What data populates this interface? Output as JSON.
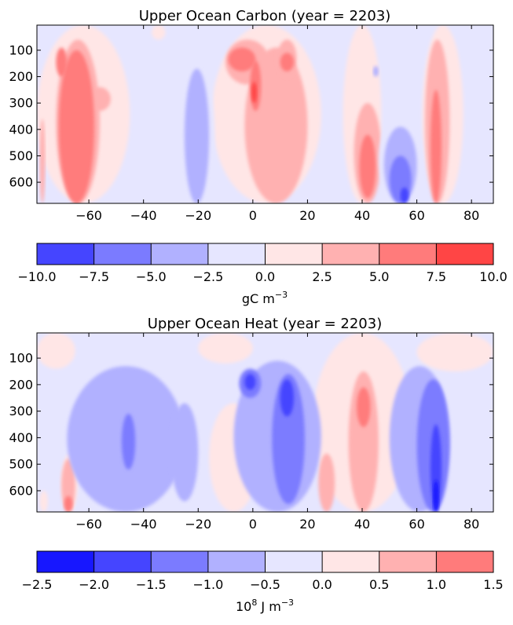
{
  "chart_data": [
    {
      "type": "heatmap",
      "title": "Upper Ocean Carbon  (year = 2203)",
      "xlabel": "",
      "ylabel": "",
      "xlim": [
        -79,
        88
      ],
      "ylim": [
        680,
        5
      ],
      "x_ticks": [
        -60,
        -40,
        -20,
        0,
        20,
        40,
        60,
        80
      ],
      "x_tick_labels": [
        "−60",
        "−40",
        "−20",
        "0",
        "20",
        "40",
        "60",
        "80"
      ],
      "y_ticks": [
        100,
        200,
        300,
        400,
        500,
        600
      ],
      "y_tick_labels": [
        "100",
        "200",
        "300",
        "400",
        "500",
        "600"
      ],
      "colorbar": {
        "levels": [
          -10,
          -7.5,
          -5,
          -2.5,
          0,
          2.5,
          5,
          7.5,
          10
        ],
        "level_labels": [
          "−10.0",
          "−7.5",
          "−5.0",
          "−2.5",
          "0.0",
          "2.5",
          "5.0",
          "7.5",
          "10.0"
        ],
        "colors": [
          "#4545ff",
          "#7b7bff",
          "#b1b1ff",
          "#e6e6ff",
          "#ffe6e6",
          "#ffb1b1",
          "#ff7b7b",
          "#ff4545"
        ],
        "label_text": "gC m",
        "label_exp": "−3"
      },
      "background_band": 3,
      "features": [
        {
          "band": 4,
          "x": [
            -79,
            -45
          ],
          "y": [
            5,
            680
          ]
        },
        {
          "band": 4,
          "x": [
            -15,
            25
          ],
          "y": [
            5,
            680
          ]
        },
        {
          "band": 4,
          "x": [
            33,
            47
          ],
          "y": [
            5,
            680
          ]
        },
        {
          "band": 4,
          "x": [
            62,
            77
          ],
          "y": [
            5,
            680
          ]
        },
        {
          "band": 4,
          "x": [
            -37,
            -32
          ],
          "y": [
            5,
            60
          ]
        },
        {
          "band": 5,
          "x": [
            -72,
            -56
          ],
          "y": [
            60,
            680
          ]
        },
        {
          "band": 5,
          "x": [
            -78,
            -76
          ],
          "y": [
            360,
            680
          ]
        },
        {
          "band": 5,
          "x": [
            -60,
            -52
          ],
          "y": [
            240,
            330
          ]
        },
        {
          "band": 5,
          "x": [
            -10,
            6
          ],
          "y": [
            60,
            230
          ]
        },
        {
          "band": 5,
          "x": [
            -3,
            20
          ],
          "y": [
            90,
            680
          ]
        },
        {
          "band": 5,
          "x": [
            9,
            16
          ],
          "y": [
            60,
            200
          ]
        },
        {
          "band": 5,
          "x": [
            37,
            47
          ],
          "y": [
            300,
            680
          ]
        },
        {
          "band": 5,
          "x": [
            63,
            72
          ],
          "y": [
            60,
            680
          ]
        },
        {
          "band": 6,
          "x": [
            -71,
            -58
          ],
          "y": [
            100,
            680
          ]
        },
        {
          "band": 6,
          "x": [
            -72,
            -68
          ],
          "y": [
            90,
            200
          ]
        },
        {
          "band": 6,
          "x": [
            -9,
            1
          ],
          "y": [
            90,
            180
          ]
        },
        {
          "band": 6,
          "x": [
            10,
            15
          ],
          "y": [
            110,
            180
          ]
        },
        {
          "band": 6,
          "x": [
            -1,
            3
          ],
          "y": [
            140,
            330
          ]
        },
        {
          "band": 6,
          "x": [
            39,
            45
          ],
          "y": [
            420,
            660
          ]
        },
        {
          "band": 6,
          "x": [
            65,
            69
          ],
          "y": [
            250,
            680
          ]
        },
        {
          "band": 7,
          "x": [
            -0.5,
            1.5
          ],
          "y": [
            220,
            300
          ]
        },
        {
          "band": 3,
          "x": [
            -27,
            -14
          ],
          "y": [
            150,
            680
          ]
        },
        {
          "band": 2,
          "x": [
            -25,
            -16
          ],
          "y": [
            170,
            680
          ]
        },
        {
          "band": 3,
          "x": [
            46,
            62
          ],
          "y": [
            350,
            680
          ]
        },
        {
          "band": 2,
          "x": [
            48,
            60
          ],
          "y": [
            390,
            680
          ]
        },
        {
          "band": 1,
          "x": [
            50,
            58
          ],
          "y": [
            500,
            680
          ]
        },
        {
          "band": 0,
          "x": [
            54,
            57
          ],
          "y": [
            620,
            680
          ]
        },
        {
          "band": 2,
          "x": [
            44,
            46
          ],
          "y": [
            160,
            200
          ]
        }
      ]
    },
    {
      "type": "heatmap",
      "title": "Upper Ocean Heat (year = 2203)",
      "xlabel": "",
      "ylabel": "",
      "xlim": [
        -79,
        88
      ],
      "ylim": [
        680,
        5
      ],
      "x_ticks": [
        -60,
        -40,
        -20,
        0,
        20,
        40,
        60,
        80
      ],
      "x_tick_labels": [
        "−60",
        "−40",
        "−20",
        "0",
        "20",
        "40",
        "60",
        "80"
      ],
      "y_ticks": [
        100,
        200,
        300,
        400,
        500,
        600
      ],
      "y_tick_labels": [
        "100",
        "200",
        "300",
        "400",
        "500",
        "600"
      ],
      "colorbar": {
        "levels": [
          -2.5,
          -2.0,
          -1.5,
          -1.0,
          -0.5,
          0.0,
          0.5,
          1.0,
          1.5
        ],
        "level_labels": [
          "−2.5",
          "−2.0",
          "−1.5",
          "−1.0",
          "−0.5",
          "0.0",
          "0.5",
          "1.0",
          "1.5"
        ],
        "colors": [
          "#1717ff",
          "#4545ff",
          "#7b7bff",
          "#b1b1ff",
          "#e6e6ff",
          "#ffe6e6",
          "#ffb1b1",
          "#ff7b7b"
        ],
        "label_pre": "10",
        "label_pre_exp": "8",
        "label_text": " J m",
        "label_exp": "−3"
      },
      "background_band": 4,
      "features": [
        {
          "band": 5,
          "x": [
            -79,
            -65
          ],
          "y": [
            5,
            140
          ]
        },
        {
          "band": 5,
          "x": [
            -20,
            0
          ],
          "y": [
            5,
            120
          ]
        },
        {
          "band": 5,
          "x": [
            -16,
            2
          ],
          "y": [
            270,
            680
          ]
        },
        {
          "band": 5,
          "x": [
            22,
            58
          ],
          "y": [
            5,
            680
          ]
        },
        {
          "band": 5,
          "x": [
            60,
            88
          ],
          "y": [
            5,
            150
          ]
        },
        {
          "band": 5,
          "x": [
            -78,
            -75
          ],
          "y": [
            600,
            680
          ]
        },
        {
          "band": 5,
          "x": [
            -70,
            -64
          ],
          "y": [
            460,
            680
          ]
        },
        {
          "band": 6,
          "x": [
            -70,
            -65
          ],
          "y": [
            480,
            680
          ]
        },
        {
          "band": 6,
          "x": [
            24,
            30
          ],
          "y": [
            460,
            680
          ]
        },
        {
          "band": 6,
          "x": [
            35,
            46
          ],
          "y": [
            150,
            680
          ]
        },
        {
          "band": 7,
          "x": [
            38,
            43
          ],
          "y": [
            210,
            360
          ]
        },
        {
          "band": 7,
          "x": [
            -69,
            -66
          ],
          "y": [
            620,
            680
          ]
        },
        {
          "band": 3,
          "x": [
            -68,
            -25
          ],
          "y": [
            130,
            680
          ]
        },
        {
          "band": 3,
          "x": [
            -30,
            -20
          ],
          "y": [
            270,
            640
          ]
        },
        {
          "band": 3,
          "x": [
            -7,
            25
          ],
          "y": [
            110,
            680
          ]
        },
        {
          "band": 3,
          "x": [
            50,
            72
          ],
          "y": [
            130,
            680
          ]
        },
        {
          "band": 2,
          "x": [
            -48,
            -43
          ],
          "y": [
            310,
            520
          ]
        },
        {
          "band": 2,
          "x": [
            -5,
            3
          ],
          "y": [
            140,
            250
          ]
        },
        {
          "band": 2,
          "x": [
            7,
            19
          ],
          "y": [
            160,
            650
          ]
        },
        {
          "band": 2,
          "x": [
            60,
            72
          ],
          "y": [
            180,
            680
          ]
        },
        {
          "band": 1,
          "x": [
            -3,
            1
          ],
          "y": [
            160,
            220
          ]
        },
        {
          "band": 1,
          "x": [
            10,
            15
          ],
          "y": [
            180,
            320
          ]
        },
        {
          "band": 1,
          "x": [
            65,
            69
          ],
          "y": [
            350,
            680
          ]
        },
        {
          "band": 0,
          "x": [
            66,
            68
          ],
          "y": [
            560,
            680
          ]
        }
      ]
    }
  ]
}
